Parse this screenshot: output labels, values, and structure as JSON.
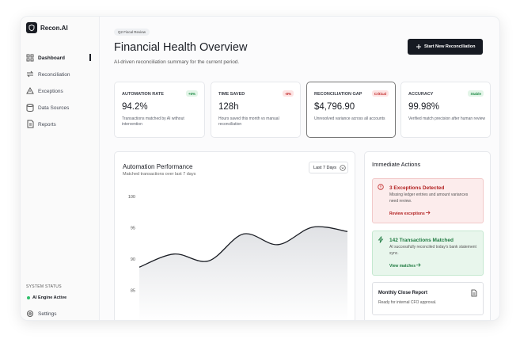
{
  "sidebar": {
    "brand": "Recon.AI",
    "nav": [
      "Dashboard",
      "Reconciliation",
      "Exceptions",
      "Data Sources",
      "Reports"
    ],
    "status_label": "SYSTEM STATUS",
    "status": "AI Engine Active",
    "settings": "Settings"
  },
  "header": {
    "badge": "Q2 Fiscal Review",
    "title": "Financial Health Overview",
    "subtitle": "AI-driven reconciliation summary for the current period.",
    "button": "Start New Reconciliation"
  },
  "kpis": [
    {
      "label": "AUTOMATION RATE",
      "tag": "+6%",
      "value": "94.2%",
      "note": "Transactions matched by AI without intervention"
    },
    {
      "label": "TIME SAVED",
      "tag": "-8%",
      "value": "128h",
      "note": "Hours saved this month vs manual reconciliation"
    },
    {
      "label": "RECONCILIATION GAP",
      "tag": "Critical",
      "value": "$4,796.90",
      "note": "Unresolved variance across all accounts"
    },
    {
      "label": "ACCURACY",
      "tag": "Stable",
      "value": "99.98%",
      "note": "Verified match precision after human review"
    }
  ],
  "chart_data": {
    "type": "area",
    "title": "Automation Performance",
    "subtitle": "Matched transactions over last 7 days",
    "range": "Last 7 Days",
    "categories": [
      null,
      null,
      null,
      null,
      null,
      null,
      null
    ],
    "values": [
      88.7,
      90.8,
      89.7,
      94.0,
      92.3,
      95.1,
      94.4
    ],
    "ylim": [
      80,
      100
    ],
    "yticks": [
      80,
      85,
      90,
      95,
      100
    ],
    "color": "#1a1d24"
  },
  "actions": {
    "title": "Immediate Actions",
    "items": [
      {
        "title": "3 Exceptions Detected",
        "text": "Missing ledger entries and amount variances need review.",
        "link": "Review exceptions"
      },
      {
        "title": "142 Transactions Matched",
        "text": "AI successfully reconciled today's bank statement sync.",
        "link": "View matches"
      },
      {
        "title": "Monthly Close Report",
        "text": "Ready for internal CFO approval."
      }
    ]
  }
}
